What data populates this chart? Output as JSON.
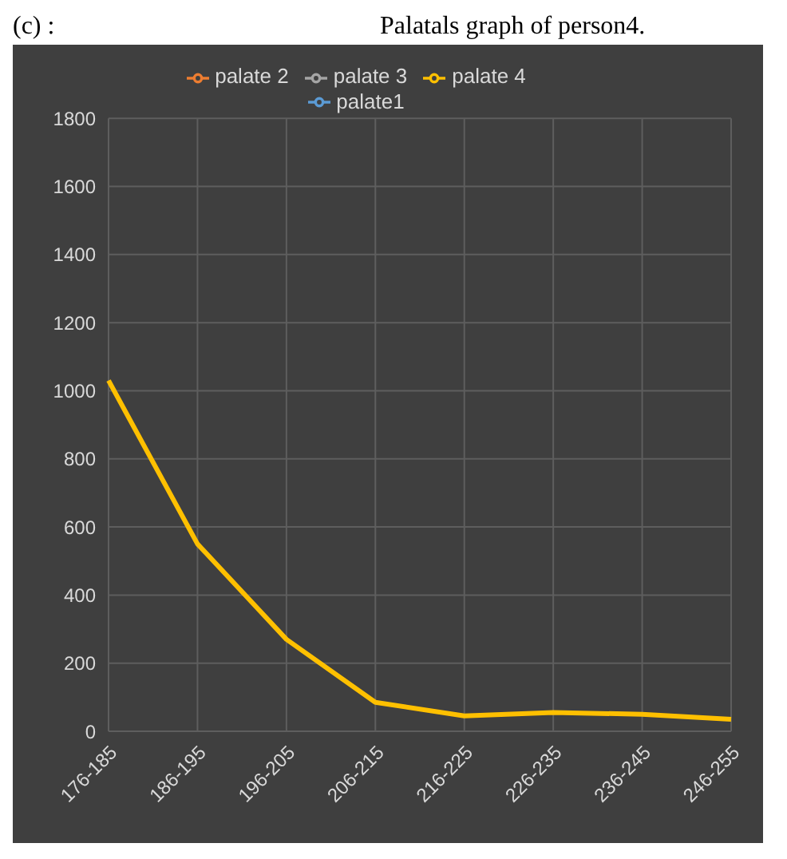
{
  "chart_data": {
    "type": "line",
    "title": "Palatals graph of person4.",
    "annotations": [
      "(c) :"
    ],
    "categories": [
      "176-185",
      "186-195",
      "196-205",
      "206-215",
      "216-225",
      "226-235",
      "236-245",
      "246-255"
    ],
    "series": [
      {
        "name": "palate1",
        "color": "#5b9bd5",
        "values": [
          null,
          null,
          null,
          null,
          null,
          null,
          null,
          null
        ]
      },
      {
        "name": "palate 2",
        "color": "#ed7d31",
        "values": [
          null,
          null,
          null,
          null,
          null,
          null,
          null,
          null
        ]
      },
      {
        "name": "palate 3",
        "color": "#a5a5a5",
        "values": [
          null,
          null,
          null,
          null,
          null,
          null,
          null,
          null
        ]
      },
      {
        "name": "palate 4",
        "color": "#ffc000",
        "values": [
          1030,
          550,
          270,
          85,
          45,
          55,
          50,
          35
        ]
      }
    ],
    "ylim": [
      0,
      1800
    ],
    "yticks": [
      0,
      200,
      400,
      600,
      800,
      1000,
      1200,
      1400,
      1600,
      1800
    ],
    "grid": true,
    "legend": "top",
    "marker": "none",
    "line_style": "solid"
  }
}
